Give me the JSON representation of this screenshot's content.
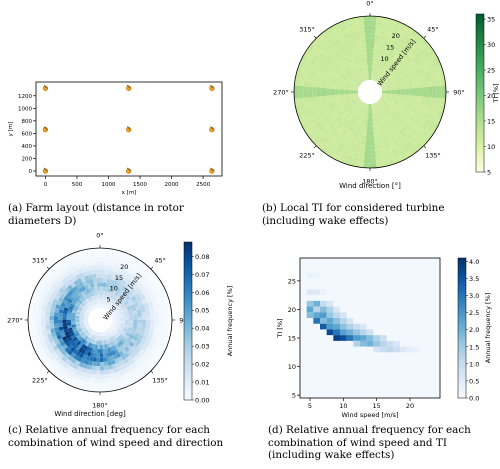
{
  "chart_data": [
    {
      "type": "scatter",
      "caption": [
        "(a)  Farm  layout  (distance  in  rotor",
        "diameters D)"
      ],
      "xlabel": "x [m]",
      "ylabel": "y [m]",
      "xticks": [
        0,
        500,
        1000,
        1500,
        2000,
        2500
      ],
      "yticks": [
        0,
        200,
        400,
        600,
        800,
        1000,
        1200
      ],
      "xlim": [
        -150,
        2800
      ],
      "ylim": [
        -80,
        1420
      ],
      "grid": false,
      "points": [
        {
          "x": 0,
          "y": 0
        },
        {
          "x": 1320,
          "y": 0
        },
        {
          "x": 2640,
          "y": 0
        },
        {
          "x": 0,
          "y": 660
        },
        {
          "x": 1320,
          "y": 660
        },
        {
          "x": 2640,
          "y": 660
        },
        {
          "x": 0,
          "y": 1320
        },
        {
          "x": 1320,
          "y": 1320
        },
        {
          "x": 2640,
          "y": 1320
        }
      ],
      "colors": {
        "marker": "#f5a623",
        "marker_edge": "#b36b00"
      }
    },
    {
      "type": "heatmap",
      "projection": "polar",
      "caption": [
        "(b)  Local  TI  for  considered  turbine",
        "(including wake effects)"
      ],
      "xlabel": "Wind direction [°]",
      "radial_label": "Wind speed [m/s]",
      "angle_ticks": [
        "0°",
        "45°",
        "90°",
        "135°",
        "180°",
        "225°",
        "270°",
        "315°"
      ],
      "radial_ticks": [
        "10",
        "15",
        "20"
      ],
      "radial_range": [
        0,
        25
      ],
      "colorbar": {
        "label": "TI [%]",
        "ticks": [
          5,
          10,
          15,
          20,
          25,
          30,
          35
        ],
        "range": [
          5,
          36
        ]
      },
      "approx_values": {
        "background_ti": 12,
        "wake_peak_ti": 16
      }
    },
    {
      "type": "heatmap",
      "projection": "polar",
      "caption": [
        "(c)  Relative  annual  frequency  for  each",
        "combination of wind speed and direction"
      ],
      "xlabel": "Wind direction [deg]",
      "radial_label": "Wind speed [m/s]",
      "angle_ticks": [
        "0°",
        "45°",
        "90°",
        "135°",
        "180°",
        "225°",
        "270°",
        "315°"
      ],
      "radial_ticks": [
        "5",
        "10",
        "15",
        "20"
      ],
      "radial_range": [
        0,
        25
      ],
      "colorbar": {
        "label": "Annual frequency [%]",
        "ticks": [
          0.0,
          0.01,
          0.02,
          0.03,
          0.04,
          0.05,
          0.06,
          0.07,
          0.08
        ],
        "tick_labels": [
          "0.00",
          "0.01",
          "0.02",
          "0.03",
          "0.04",
          "0.05",
          "0.06",
          "0.07",
          "0.08"
        ],
        "range": [
          0,
          0.088
        ]
      },
      "approx_values": {
        "peak_direction_deg": 235,
        "peak_speed": 10,
        "peak_frequency": 0.08
      }
    },
    {
      "type": "heatmap",
      "caption": [
        "(d) Relative annual frequency for each",
        "combination of wind speed and TI",
        "(including wake effects)"
      ],
      "xlabel": "Wind speed [m/s]",
      "ylabel": "TI [%]",
      "xticks": [
        5,
        10,
        15,
        20
      ],
      "yticks": [
        5,
        10,
        15,
        20,
        25
      ],
      "xlim": [
        3.5,
        24.5
      ],
      "ylim": [
        4.5,
        29
      ],
      "colorbar": {
        "label": "Annual frequency [%]",
        "ticks": [
          0.0,
          0.5,
          1.0,
          1.5,
          2.0,
          2.5,
          3.0,
          3.5,
          4.0
        ],
        "tick_labels": [
          "0.0",
          "0.5",
          "1.0",
          "1.5",
          "2.0",
          "2.5",
          "3.0",
          "3.5",
          "4.0"
        ],
        "range": [
          0,
          4.1
        ]
      },
      "cells": [
        {
          "ws": 5,
          "ti": 26,
          "v": 0.3
        },
        {
          "ws": 6,
          "ti": 26,
          "v": 0.2
        },
        {
          "ws": 5,
          "ti": 23,
          "v": 0.6
        },
        {
          "ws": 6,
          "ti": 23,
          "v": 0.5
        },
        {
          "ws": 7,
          "ti": 23,
          "v": 0.3
        },
        {
          "ws": 5,
          "ti": 21,
          "v": 1.6
        },
        {
          "ws": 6,
          "ti": 21,
          "v": 2.0
        },
        {
          "ws": 7,
          "ti": 21,
          "v": 1.0
        },
        {
          "ws": 8,
          "ti": 21,
          "v": 0.6
        },
        {
          "ws": 5,
          "ti": 20,
          "v": 2.2
        },
        {
          "ws": 6,
          "ti": 20,
          "v": 1.2
        },
        {
          "ws": 7,
          "ti": 20,
          "v": 1.8
        },
        {
          "ws": 8,
          "ti": 20,
          "v": 1.3
        },
        {
          "ws": 9,
          "ti": 20,
          "v": 0.6
        },
        {
          "ws": 5,
          "ti": 19,
          "v": 1.8
        },
        {
          "ws": 6,
          "ti": 19,
          "v": 2.2
        },
        {
          "ws": 7,
          "ti": 19,
          "v": 2.4
        },
        {
          "ws": 8,
          "ti": 19,
          "v": 1.6
        },
        {
          "ws": 9,
          "ti": 19,
          "v": 1.1
        },
        {
          "ws": 10,
          "ti": 19,
          "v": 0.7
        },
        {
          "ws": 6,
          "ti": 18,
          "v": 3.0
        },
        {
          "ws": 7,
          "ti": 18,
          "v": 1.8
        },
        {
          "ws": 8,
          "ti": 18,
          "v": 2.2
        },
        {
          "ws": 9,
          "ti": 18,
          "v": 1.7
        },
        {
          "ws": 10,
          "ti": 18,
          "v": 1.2
        },
        {
          "ws": 11,
          "ti": 18,
          "v": 0.7
        },
        {
          "ws": 7,
          "ti": 17,
          "v": 3.4
        },
        {
          "ws": 8,
          "ti": 17,
          "v": 2.4
        },
        {
          "ws": 9,
          "ti": 17,
          "v": 2.2
        },
        {
          "ws": 10,
          "ti": 17,
          "v": 1.7
        },
        {
          "ws": 11,
          "ti": 17,
          "v": 1.3
        },
        {
          "ws": 12,
          "ti": 17,
          "v": 0.9
        },
        {
          "ws": 13,
          "ti": 17,
          "v": 0.6
        },
        {
          "ws": 8,
          "ti": 16,
          "v": 3.7
        },
        {
          "ws": 9,
          "ti": 16,
          "v": 3.0
        },
        {
          "ws": 10,
          "ti": 16,
          "v": 2.3
        },
        {
          "ws": 11,
          "ti": 16,
          "v": 2.0
        },
        {
          "ws": 12,
          "ti": 16,
          "v": 1.6
        },
        {
          "ws": 13,
          "ti": 16,
          "v": 1.2
        },
        {
          "ws": 14,
          "ti": 16,
          "v": 0.8
        },
        {
          "ws": 9,
          "ti": 15,
          "v": 3.9
        },
        {
          "ws": 10,
          "ti": 15,
          "v": 3.6
        },
        {
          "ws": 11,
          "ti": 15,
          "v": 3.0
        },
        {
          "ws": 12,
          "ti": 15,
          "v": 2.4
        },
        {
          "ws": 13,
          "ti": 15,
          "v": 2.2
        },
        {
          "ws": 14,
          "ti": 15,
          "v": 1.8
        },
        {
          "ws": 15,
          "ti": 15,
          "v": 1.3
        },
        {
          "ws": 16,
          "ti": 15,
          "v": 0.9
        },
        {
          "ws": 12,
          "ti": 14,
          "v": 1.3
        },
        {
          "ws": 13,
          "ti": 14,
          "v": 1.8
        },
        {
          "ws": 14,
          "ti": 14,
          "v": 2.0
        },
        {
          "ws": 15,
          "ti": 14,
          "v": 1.6
        },
        {
          "ws": 16,
          "ti": 14,
          "v": 1.2
        },
        {
          "ws": 17,
          "ti": 14,
          "v": 0.9
        },
        {
          "ws": 18,
          "ti": 14,
          "v": 0.6
        },
        {
          "ws": 15,
          "ti": 13,
          "v": 0.7
        },
        {
          "ws": 16,
          "ti": 13,
          "v": 1.0
        },
        {
          "ws": 17,
          "ti": 13,
          "v": 1.1
        },
        {
          "ws": 18,
          "ti": 13,
          "v": 0.9
        },
        {
          "ws": 19,
          "ti": 13,
          "v": 0.6
        },
        {
          "ws": 20,
          "ti": 13,
          "v": 0.4
        },
        {
          "ws": 21,
          "ti": 13,
          "v": 0.3
        }
      ]
    }
  ],
  "colors": {
    "green_scale": [
      "#ffffe5",
      "#d9f0a3",
      "#addd8e",
      "#78c679",
      "#41ab5d",
      "#238443",
      "#005a32"
    ],
    "blue_scale": [
      "#f7fbff",
      "#deebf7",
      "#c6dbef",
      "#9ecae1",
      "#6baed6",
      "#4292c6",
      "#2171b5",
      "#08519c",
      "#08306b"
    ]
  }
}
